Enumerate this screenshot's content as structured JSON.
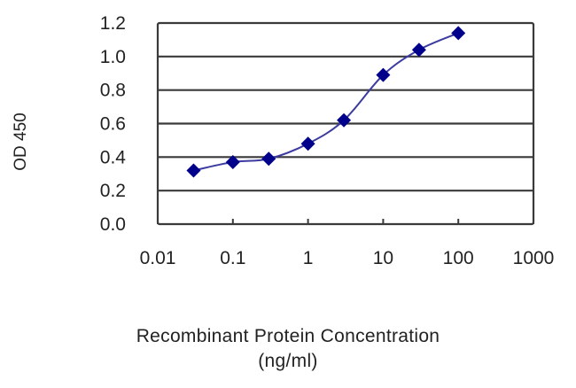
{
  "chart_data": {
    "type": "line",
    "title": "",
    "xlabel": "Recombinant Protein Concentration (ng/ml)",
    "xlabel_line1": "Recombinant Protein Concentration",
    "xlabel_line2": "(ng/ml)",
    "ylabel": "OD 450",
    "xscale": "log",
    "xlim": [
      0.01,
      1000
    ],
    "ylim": [
      0.0,
      1.2
    ],
    "xticks": [
      "0.01",
      "0.1",
      "1",
      "10",
      "100",
      "1000"
    ],
    "yticks": [
      "0.0",
      "0.2",
      "0.4",
      "0.6",
      "0.8",
      "1.0",
      "1.2"
    ],
    "grid": "horizontal",
    "legend": "none",
    "series": [
      {
        "name": "OD 450",
        "color": "#00008B",
        "marker": "diamond",
        "x": [
          0.03,
          0.1,
          0.3,
          1,
          3,
          10,
          30,
          100
        ],
        "values": [
          0.32,
          0.37,
          0.39,
          0.48,
          0.62,
          0.89,
          1.04,
          1.14
        ]
      }
    ]
  }
}
